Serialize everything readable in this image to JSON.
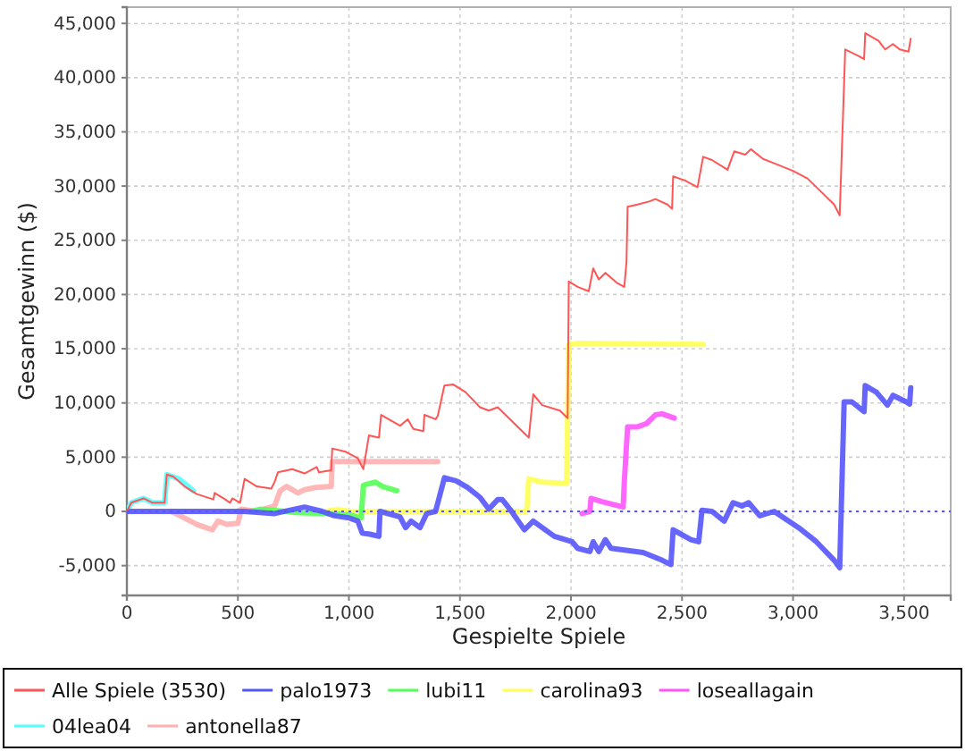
{
  "chart_data": {
    "type": "line",
    "xlabel": "Gespielte Spiele",
    "ylabel": "Gesamtgewinn ($)",
    "xlim": [
      0,
      3710
    ],
    "ylim": [
      -7750,
      46500
    ],
    "xticks": [
      0,
      500,
      {
        "value": 1000,
        "label": "1,000"
      },
      {
        "value": 1500,
        "label": "1,500"
      },
      {
        "value": 2000,
        "label": "2,000"
      },
      {
        "value": 2500,
        "label": "2,500"
      },
      {
        "value": 3000,
        "label": "3,000"
      },
      {
        "value": 3500,
        "label": "3,500"
      }
    ],
    "yticks": [
      {
        "value": -5000,
        "label": "-5,000"
      },
      0,
      {
        "value": 5000,
        "label": "5,000"
      },
      {
        "value": 10000,
        "label": "10,000"
      },
      {
        "value": 15000,
        "label": "15,000"
      },
      {
        "value": 20000,
        "label": "20,000"
      },
      {
        "value": 25000,
        "label": "25,000"
      },
      {
        "value": 30000,
        "label": "30,000"
      },
      {
        "value": 35000,
        "label": "35,000"
      },
      {
        "value": 40000,
        "label": "40,000"
      },
      {
        "value": 45000,
        "label": "45,000"
      }
    ],
    "grid": true,
    "legend": "bottom",
    "ref_lines": [
      {
        "axis": "y",
        "value": 0,
        "color": "#5555ff",
        "line_style": "dotted"
      }
    ],
    "series": [
      {
        "name": "Alle Spiele (3530)",
        "color": "#ff5555",
        "x": [
          0,
          20,
          75,
          115,
          170,
          180,
          210,
          260,
          315,
          390,
          395,
          435,
          465,
          475,
          510,
          530,
          585,
          650,
          665,
          680,
          745,
          800,
          855,
          865,
          920,
          925,
          985,
          1040,
          1065,
          1090,
          1135,
          1145,
          1230,
          1265,
          1290,
          1335,
          1340,
          1390,
          1400,
          1430,
          1470,
          1525,
          1590,
          1630,
          1670,
          1710,
          1780,
          1810,
          1830,
          1870,
          1950,
          1985,
          1990,
          2030,
          2080,
          2100,
          2125,
          2155,
          2205,
          2240,
          2250,
          2255,
          2300,
          2355,
          2380,
          2435,
          2455,
          2460,
          2515,
          2570,
          2595,
          2635,
          2705,
          2735,
          2785,
          2810,
          2865,
          2915,
          3000,
          3065,
          3130,
          3185,
          3210,
          3235,
          3295,
          3320,
          3325,
          3385,
          3415,
          3450,
          3480,
          3520,
          3530
        ],
        "values": [
          0,
          800,
          1200,
          800,
          800,
          3400,
          3200,
          2300,
          1600,
          1100,
          1700,
          1200,
          800,
          1200,
          800,
          3000,
          2300,
          2100,
          2700,
          3600,
          3900,
          3500,
          4100,
          3600,
          3800,
          5800,
          5500,
          4900,
          3900,
          7000,
          6800,
          8900,
          7900,
          8500,
          7600,
          7400,
          8900,
          8500,
          8800,
          11600,
          11700,
          11000,
          9600,
          9300,
          9600,
          8800,
          7400,
          6800,
          10800,
          9800,
          9300,
          8600,
          21200,
          20700,
          20300,
          22400,
          21400,
          22000,
          21100,
          20700,
          23000,
          28100,
          28300,
          28600,
          28800,
          28300,
          27900,
          30900,
          30500,
          29900,
          32700,
          32400,
          31500,
          33200,
          32900,
          33400,
          32500,
          32100,
          31400,
          30700,
          29400,
          28300,
          27300,
          42600,
          42000,
          41700,
          44100,
          43400,
          42600,
          43100,
          42600,
          42400,
          43600
        ]
      },
      {
        "name": "palo1973",
        "color": "#5555ff",
        "x": [
          0,
          530,
          665,
          800,
          880,
          935,
          1000,
          1040,
          1060,
          1095,
          1135,
          1140,
          1230,
          1255,
          1280,
          1320,
          1350,
          1390,
          1430,
          1485,
          1535,
          1590,
          1630,
          1670,
          1690,
          1725,
          1790,
          1830,
          1925,
          2005,
          2030,
          2085,
          2100,
          2125,
          2155,
          2180,
          2325,
          2410,
          2450,
          2460,
          2540,
          2575,
          2590,
          2635,
          2690,
          2730,
          2770,
          2800,
          2850,
          2915,
          3025,
          3105,
          3185,
          3210,
          3230,
          3265,
          3320,
          3325,
          3375,
          3425,
          3450,
          3510,
          3525,
          3530
        ],
        "values": [
          0,
          0,
          -200,
          400,
          0,
          -400,
          -600,
          -900,
          -2000,
          -2100,
          -2300,
          0,
          -500,
          -1500,
          -900,
          -1500,
          -200,
          0,
          3100,
          2800,
          2200,
          1300,
          200,
          1100,
          1100,
          200,
          -1700,
          -900,
          -2300,
          -2800,
          -3400,
          -3700,
          -2800,
          -3700,
          -2600,
          -3400,
          -3800,
          -4500,
          -4900,
          -1700,
          -2600,
          -2800,
          100,
          0,
          -900,
          800,
          500,
          800,
          -400,
          0,
          -1500,
          -2800,
          -4500,
          -5200,
          10100,
          10100,
          9200,
          11600,
          11000,
          9800,
          10700,
          10100,
          9900,
          11400
        ]
      },
      {
        "name": "lubi11",
        "color": "#55ff55",
        "x": [
          560,
          600,
          660,
          760,
          900,
          1000,
          1055,
          1065,
          1080,
          1120,
          1150,
          1215
        ],
        "values": [
          0,
          200,
          100,
          -100,
          -200,
          -300,
          -600,
          2400,
          2500,
          2700,
          2300,
          1900
        ]
      },
      {
        "name": "carolina93",
        "color": "#ffff55",
        "x": [
          900,
          950,
          1000,
          1800,
          1810,
          1870,
          1980,
          1990,
          2030,
          2595
        ],
        "values": [
          0,
          200,
          0,
          0,
          3000,
          2700,
          2600,
          15400,
          15500,
          15400
        ]
      },
      {
        "name": "loseallagain",
        "color": "#ff55ff",
        "x": [
          2050,
          2085,
          2090,
          2140,
          2235,
          2240,
          2255,
          2300,
          2340,
          2380,
          2410,
          2465
        ],
        "values": [
          -200,
          0,
          1200,
          900,
          400,
          2700,
          7800,
          7800,
          8100,
          8900,
          9000,
          8600
        ]
      },
      {
        "name": "04lea04",
        "color": "#55ffff",
        "x": [
          0,
          20,
          75,
          115,
          170,
          180,
          235,
          300
        ],
        "values": [
          0,
          800,
          1200,
          800,
          800,
          3400,
          3000,
          1900
        ]
      },
      {
        "name": "antonella87",
        "color": "#ffafaf",
        "x": [
          200,
          240,
          315,
          385,
          410,
          450,
          500,
          515,
          585,
          665,
          690,
          720,
          770,
          800,
          850,
          920,
          925,
          1400
        ],
        "values": [
          0,
          -400,
          -1200,
          -1700,
          -900,
          -1200,
          -1100,
          200,
          0,
          500,
          1900,
          2300,
          1700,
          2000,
          2200,
          2300,
          4600,
          4600
        ]
      }
    ]
  }
}
